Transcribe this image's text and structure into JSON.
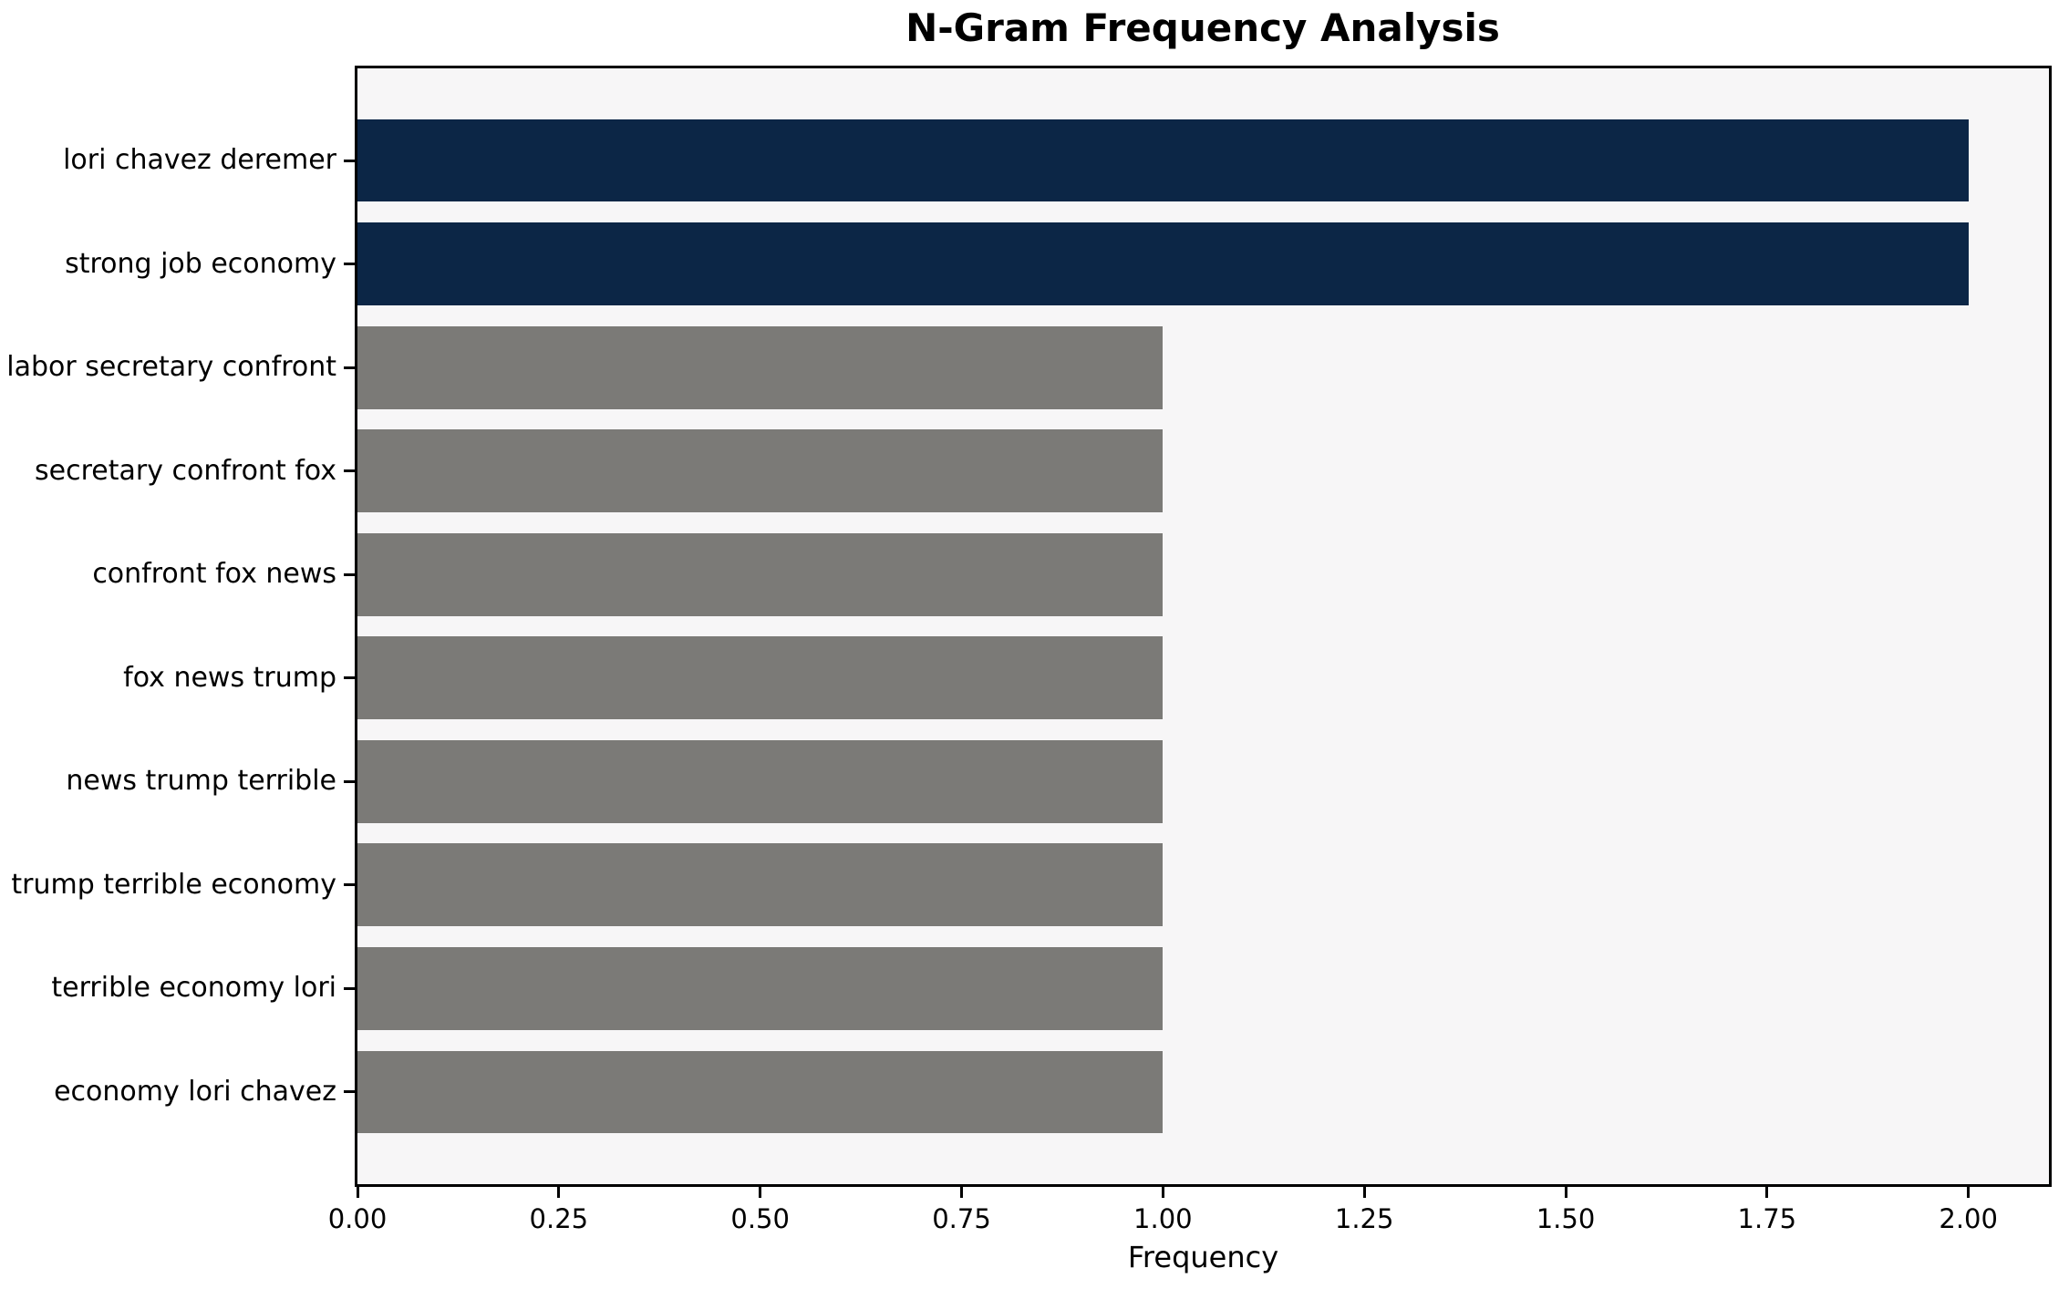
{
  "chart_data": {
    "type": "bar",
    "orientation": "horizontal",
    "title": "N-Gram Frequency Analysis",
    "xlabel": "Frequency",
    "ylabel": "",
    "categories": [
      "lori chavez deremer",
      "strong job economy",
      "labor secretary confront",
      "secretary confront fox",
      "confront fox news",
      "fox news trump",
      "news trump terrible",
      "trump terrible economy",
      "terrible economy lori",
      "economy lori chavez"
    ],
    "values": [
      2,
      2,
      1,
      1,
      1,
      1,
      1,
      1,
      1,
      1
    ],
    "bar_colors": [
      "#0c2646",
      "#0c2646",
      "#7b7a77",
      "#7b7a77",
      "#7b7a77",
      "#7b7a77",
      "#7b7a77",
      "#7b7a77",
      "#7b7a77",
      "#7b7a77"
    ],
    "xlim": [
      0,
      2.1
    ],
    "xticks": [
      0.0,
      0.25,
      0.5,
      0.75,
      1.0,
      1.25,
      1.5,
      1.75,
      2.0
    ],
    "xtick_decimals": 2,
    "grid": false,
    "legend": null,
    "colors": {
      "highlight_bar": "#0c2646",
      "default_bar": "#7b7a77",
      "plot_background": "#f7f6f7",
      "figure_background": "#ffffff",
      "spine": "#000000",
      "text": "#000000"
    }
  }
}
